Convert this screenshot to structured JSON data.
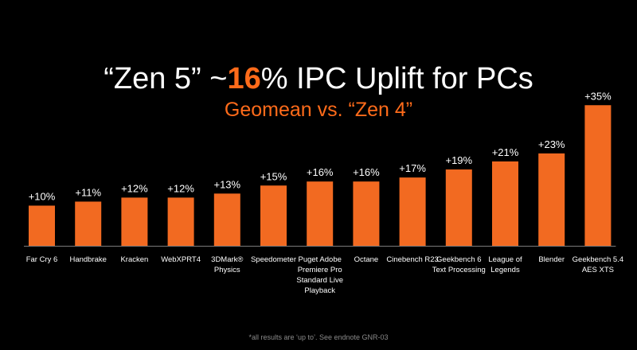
{
  "title": {
    "prefix": "“Zen 5” ~",
    "highlight": "16",
    "suffix": "% IPC Uplift for PCs"
  },
  "subtitle": "Geomean  vs. “Zen 4”",
  "footnote": "*all results are ‘up to’. See endnote GNR-03",
  "colors": {
    "bar": "#f26a21",
    "accent": "#ff6b1a",
    "background": "#000000",
    "text": "#ffffff",
    "axis": "#7a7a7a"
  },
  "chart_data": {
    "type": "bar",
    "title": "“Zen 5” ~16% IPC Uplift for PCs",
    "subtitle": "Geomean  vs. “Zen 4”",
    "xlabel": "",
    "ylabel": "",
    "ylim": [
      0,
      35
    ],
    "grid": false,
    "legend": "none",
    "categories": [
      [
        "Far Cry 6"
      ],
      [
        "Handbrake"
      ],
      [
        "Kracken"
      ],
      [
        "WebXPRT4"
      ],
      [
        "3DMark®",
        "Physics"
      ],
      [
        "Speedometer"
      ],
      [
        "Puget Adobe",
        "Premiere Pro",
        "Standard Live",
        "Playback"
      ],
      [
        "Octane"
      ],
      [
        "Cinebench R23"
      ],
      [
        "Geekbench 6",
        "Text Processing"
      ],
      [
        "League of",
        "Legends"
      ],
      [
        "Blender"
      ],
      [
        "Geekbench 5.4",
        "AES XTS"
      ]
    ],
    "values": [
      10,
      11,
      12,
      12,
      13,
      15,
      16,
      16,
      17,
      19,
      21,
      23,
      35
    ],
    "labels": [
      "+10%",
      "+11%",
      "+12%",
      "+12%",
      "+13%",
      "+15%",
      "+16%",
      "+16%",
      "+17%",
      "+19%",
      "+21%",
      "+23%",
      "+35%"
    ]
  }
}
